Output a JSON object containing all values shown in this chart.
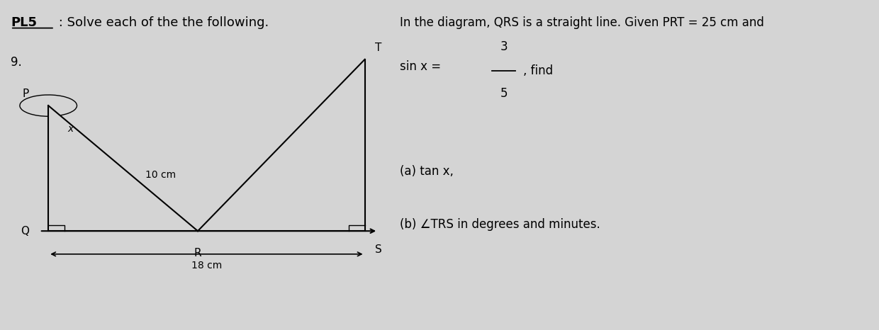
{
  "bg_color": "#d4d4d4",
  "title_bold": "PL5",
  "title_text": " : Solve each of the the following.",
  "problem_num": "9.",
  "right_text_line1": "In the diagram, QRS is a straight line. Given PRT = 25 cm and",
  "right_text_fraction_num": "3",
  "right_text_fraction_den": "5",
  "right_text_line3": "(a) tan x,",
  "right_text_line4": "(b) ∠TRS in degrees and minutes.",
  "label_P": "P",
  "label_Q": "Q",
  "label_R": "R",
  "label_S": "S",
  "label_T": "T",
  "label_x": "x",
  "label_10cm": "10 cm",
  "label_18cm": "18 cm"
}
